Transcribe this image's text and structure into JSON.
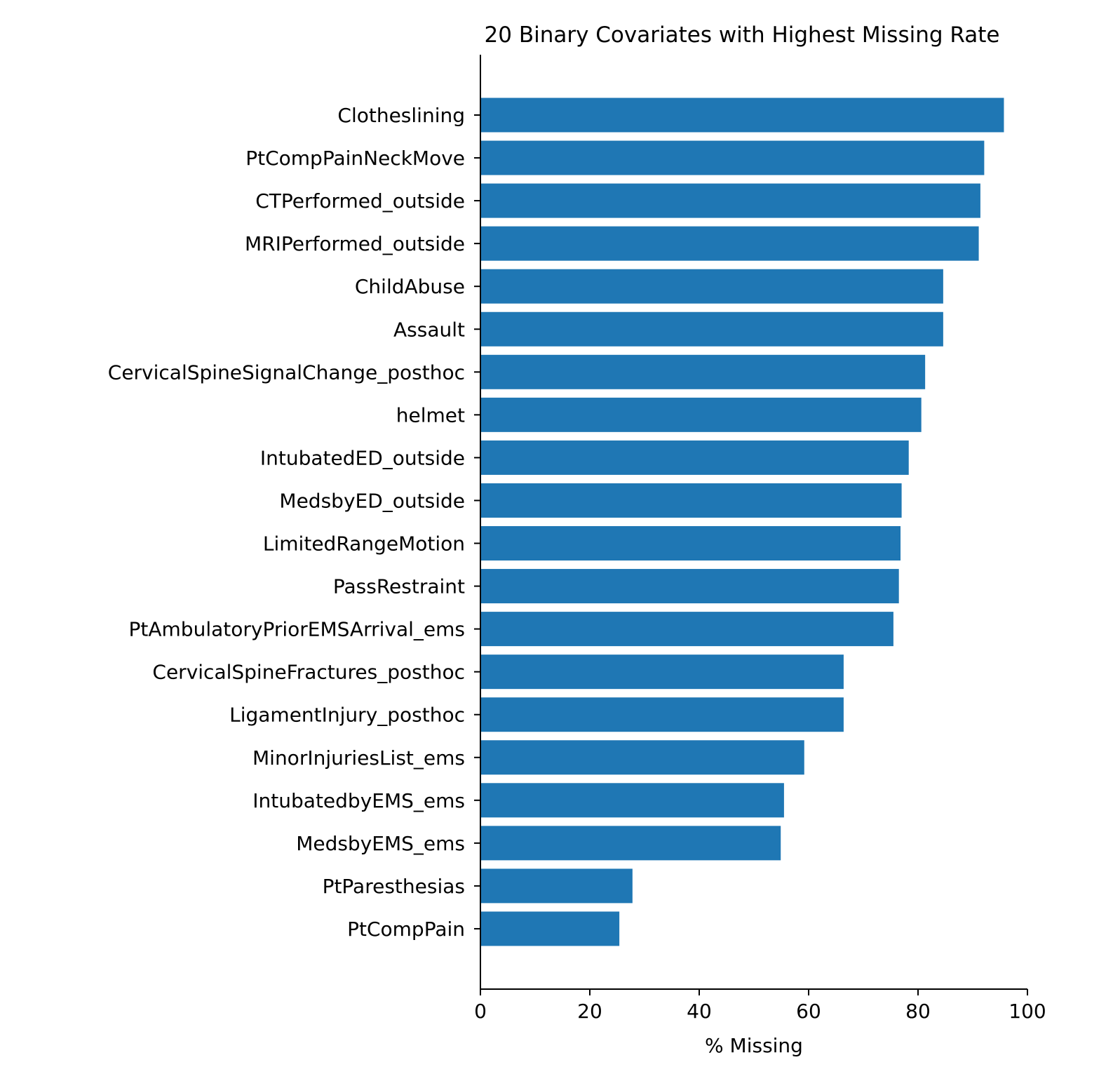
{
  "chart_data": {
    "type": "bar",
    "orientation": "horizontal",
    "title": "20 Binary Covariates with Highest Missing Rate",
    "xlabel": "% Missing",
    "ylabel": "",
    "xlim": [
      0,
      100
    ],
    "xticks": [
      "0",
      "20",
      "40",
      "60",
      "80",
      "100"
    ],
    "grid": false,
    "bar_color": "#1f77b4",
    "categories": [
      "Clotheslining",
      "PtCompPainNeckMove",
      "CTPerformed_outside",
      "MRIPerformed_outside",
      "ChildAbuse",
      "Assault",
      "CervicalSpineSignalChange_posthoc",
      "helmet",
      "IntubatedED_outside",
      "MedsbyED_outside",
      "LimitedRangeMotion",
      "PassRestraint",
      "PtAmbulatoryPriorEMSArrival_ems",
      "CervicalSpineFractures_posthoc",
      "LigamentInjury_posthoc",
      "MinorInjuriesList_ems",
      "IntubatedbyEMS_ems",
      "MedsbyEMS_ems",
      "PtParesthesias",
      "PtCompPain"
    ],
    "values": [
      95.7,
      92.1,
      91.4,
      91.1,
      84.6,
      84.6,
      81.3,
      80.6,
      78.3,
      77.0,
      76.8,
      76.5,
      75.5,
      66.4,
      66.4,
      59.2,
      55.5,
      54.9,
      27.8,
      25.4
    ]
  }
}
